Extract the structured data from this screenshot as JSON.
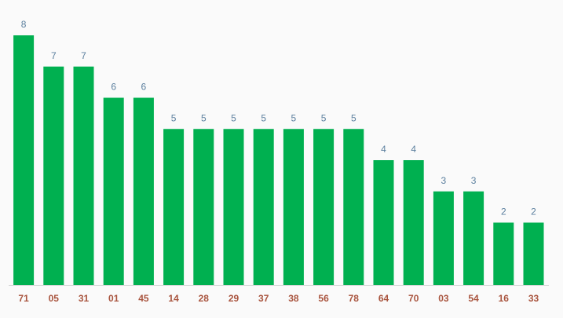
{
  "chart_data": {
    "type": "bar",
    "categories": [
      "71",
      "05",
      "31",
      "01",
      "45",
      "14",
      "28",
      "29",
      "37",
      "38",
      "56",
      "78",
      "64",
      "70",
      "03",
      "54",
      "16",
      "33"
    ],
    "values": [
      8,
      7,
      7,
      6,
      6,
      5,
      5,
      5,
      5,
      5,
      5,
      5,
      4,
      4,
      3,
      3,
      2,
      2
    ],
    "color": "#00b050",
    "ylim": [
      0,
      8
    ]
  }
}
